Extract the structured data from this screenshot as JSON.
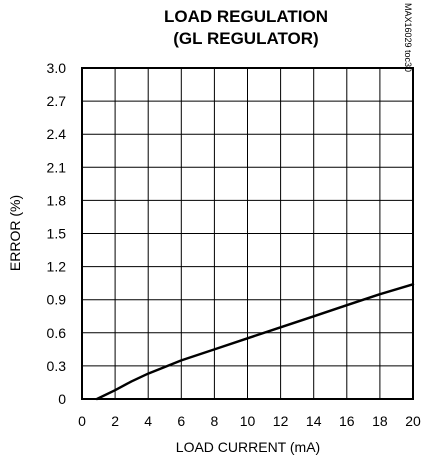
{
  "chart_data": {
    "type": "line",
    "title": "LOAD REGULATION",
    "subtitle": "(GL REGULATOR)",
    "xlabel": "LOAD CURRENT (mA)",
    "ylabel": "ERROR (%)",
    "xlim": [
      0,
      20
    ],
    "ylim": [
      0,
      3.0
    ],
    "xticks": [
      0,
      2,
      4,
      6,
      8,
      10,
      12,
      14,
      16,
      18,
      20
    ],
    "xtick_labels": [
      "0",
      "2",
      "4",
      "6",
      "8",
      "10",
      "12",
      "14",
      "16",
      "18",
      "20"
    ],
    "yticks": [
      0,
      0.3,
      0.6,
      0.9,
      1.2,
      1.5,
      1.8,
      2.1,
      2.4,
      2.7,
      3.0
    ],
    "ytick_labels": [
      "0",
      "0.3",
      "0.6",
      "0.9",
      "1.2",
      "1.5",
      "1.8",
      "2.1",
      "2.4",
      "2.7",
      "3.0"
    ],
    "grid": true,
    "series": [
      {
        "x": [
          0.9,
          2,
          3,
          4,
          5,
          6,
          8,
          10,
          12,
          14,
          16,
          18,
          20
        ],
        "y": [
          0,
          0.08,
          0.16,
          0.23,
          0.29,
          0.35,
          0.45,
          0.55,
          0.65,
          0.75,
          0.85,
          0.95,
          1.04
        ]
      }
    ],
    "part_id": "MAX16029 toc30"
  }
}
